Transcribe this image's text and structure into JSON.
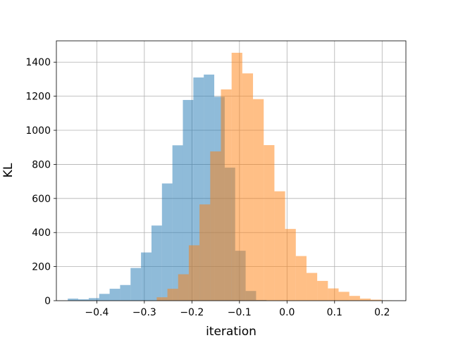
{
  "chart_data": {
    "type": "bar",
    "histogram": true,
    "title": "",
    "xlabel": "iteration",
    "ylabel": "KL",
    "xlim": [
      -0.485,
      0.25
    ],
    "ylim": [
      0,
      1525
    ],
    "xticks": [
      -0.4,
      -0.3,
      -0.2,
      -0.1,
      0.0,
      0.1,
      0.2
    ],
    "xtick_labels": [
      "−0.4",
      "−0.3",
      "−0.2",
      "−0.1",
      "0.0",
      "0.1",
      "0.2"
    ],
    "yticks": [
      0,
      200,
      400,
      600,
      800,
      1000,
      1200,
      1400
    ],
    "ytick_labels": [
      "0",
      "200",
      "400",
      "600",
      "800",
      "1000",
      "1200",
      "1400"
    ],
    "grid": true,
    "legend": "none",
    "series": [
      {
        "color": "#1f77b4",
        "opacity": 0.5,
        "bin_width": 0.022,
        "bin_start": -0.461,
        "counts": [
          12,
          8,
          15,
          40,
          70,
          92,
          192,
          283,
          441,
          688,
          912,
          1178,
          1310,
          1327,
          1197,
          781,
          293,
          57,
          4
        ]
      },
      {
        "color": "#ff7f0e",
        "opacity": 0.5,
        "bin_width": 0.0225,
        "bin_start": -0.274,
        "counts": [
          20,
          70,
          155,
          325,
          565,
          876,
          1240,
          1455,
          1334,
          1183,
          913,
          642,
          421,
          262,
          163,
          116,
          72,
          52,
          28,
          12,
          6,
          2
        ]
      }
    ]
  }
}
